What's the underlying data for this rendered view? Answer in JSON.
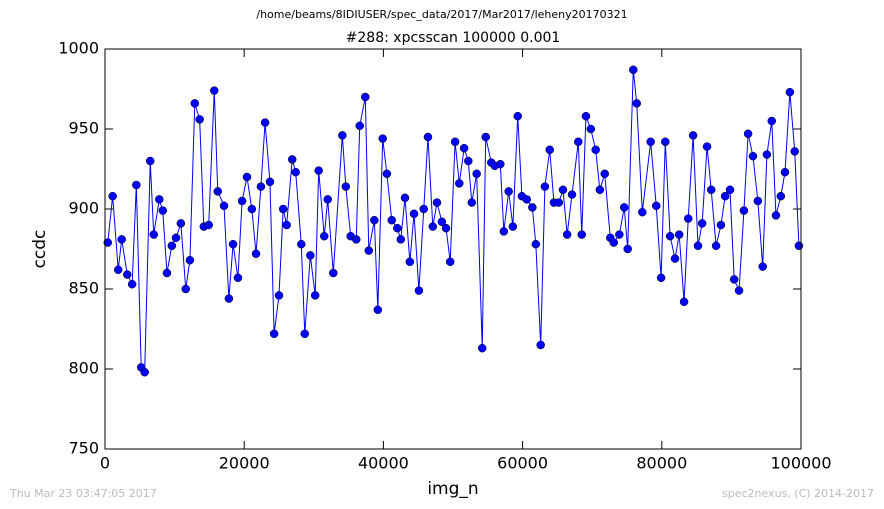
{
  "chart_data": {
    "type": "line",
    "title": "/home/beams/8IDIUSER/spec_data/2017/Mar2017/leheny20170321",
    "subtitle": "#288: xpcsscan 100000 0.001",
    "x_label": "img_n",
    "y_label": "ccdc",
    "footer_left": "Thu Mar 23 03:47:05 2017",
    "footer_right": "spec2nexus, (C) 2014-2017",
    "xlim": [
      0,
      100000
    ],
    "xticks": [
      0,
      20000,
      40000,
      60000,
      80000,
      100000
    ],
    "ylim": [
      750,
      1000
    ],
    "yticks": [
      750,
      800,
      850,
      900,
      950,
      1000
    ],
    "grid": false,
    "series": [
      {
        "name": "ccdc",
        "color": "#0000ff",
        "x": [
          400,
          1100,
          1900,
          2400,
          3200,
          3900,
          4500,
          5200,
          5700,
          6500,
          7000,
          7800,
          8300,
          8900,
          9600,
          10200,
          10900,
          11600,
          12200,
          12900,
          13600,
          14200,
          14900,
          15700,
          16200,
          17100,
          17800,
          18400,
          19100,
          19700,
          20400,
          21100,
          21700,
          22400,
          23000,
          23700,
          24300,
          25000,
          25600,
          26100,
          26900,
          27400,
          28200,
          28700,
          29500,
          30200,
          30700,
          31500,
          32000,
          32800,
          34100,
          34600,
          35300,
          36100,
          36600,
          37400,
          37900,
          38700,
          39200,
          39900,
          40500,
          41200,
          42000,
          42500,
          43100,
          43800,
          44400,
          45100,
          45800,
          46400,
          47100,
          47700,
          48400,
          49000,
          49600,
          50300,
          50900,
          51600,
          52200,
          52700,
          53400,
          54200,
          54700,
          55500,
          56000,
          56800,
          57300,
          58000,
          58600,
          59300,
          59900,
          60600,
          61400,
          61900,
          62600,
          63200,
          63900,
          64500,
          65200,
          65800,
          66400,
          67100,
          68000,
          68500,
          69100,
          69800,
          70500,
          71100,
          71800,
          72600,
          73100,
          73900,
          74600,
          75100,
          75900,
          76400,
          77200,
          78400,
          79200,
          79900,
          80500,
          81200,
          81900,
          82500,
          83200,
          83800,
          84500,
          85200,
          85800,
          86500,
          87100,
          87800,
          88500,
          89100,
          89800,
          90400,
          91100,
          91800,
          92400,
          93100,
          93800,
          94500,
          95100,
          95800,
          96400,
          97100,
          97700,
          98400,
          99100,
          99700
        ],
        "values": [
          879,
          908,
          862,
          881,
          859,
          853,
          915,
          801,
          798,
          930,
          884,
          906,
          899,
          860,
          877,
          882,
          891,
          850,
          868,
          966,
          956,
          889,
          890,
          974,
          911,
          902,
          844,
          878,
          857,
          905,
          920,
          900,
          872,
          914,
          954,
          917,
          822,
          846,
          900,
          890,
          931,
          923,
          878,
          822,
          871,
          846,
          924,
          883,
          906,
          860,
          946,
          914,
          883,
          881,
          952,
          970,
          874,
          893,
          837,
          944,
          922,
          893,
          888,
          881,
          907,
          867,
          897,
          849,
          900,
          945,
          889,
          904,
          892,
          888,
          867,
          942,
          916,
          938,
          930,
          904,
          922,
          813,
          945,
          929,
          927,
          928,
          886,
          911,
          889,
          958,
          908,
          906,
          901,
          878,
          815,
          914,
          937,
          904,
          904,
          912,
          884,
          909,
          942,
          884,
          958,
          950,
          937,
          912,
          922,
          882,
          879,
          884,
          901,
          875,
          987,
          966,
          898,
          942,
          902,
          857,
          942,
          883,
          869,
          884,
          842,
          894,
          946,
          877,
          891,
          939,
          912,
          877,
          890,
          908,
          912,
          856,
          849,
          899,
          947,
          933,
          905,
          864,
          934,
          955,
          896,
          908,
          923,
          973,
          936,
          877
        ]
      }
    ]
  }
}
